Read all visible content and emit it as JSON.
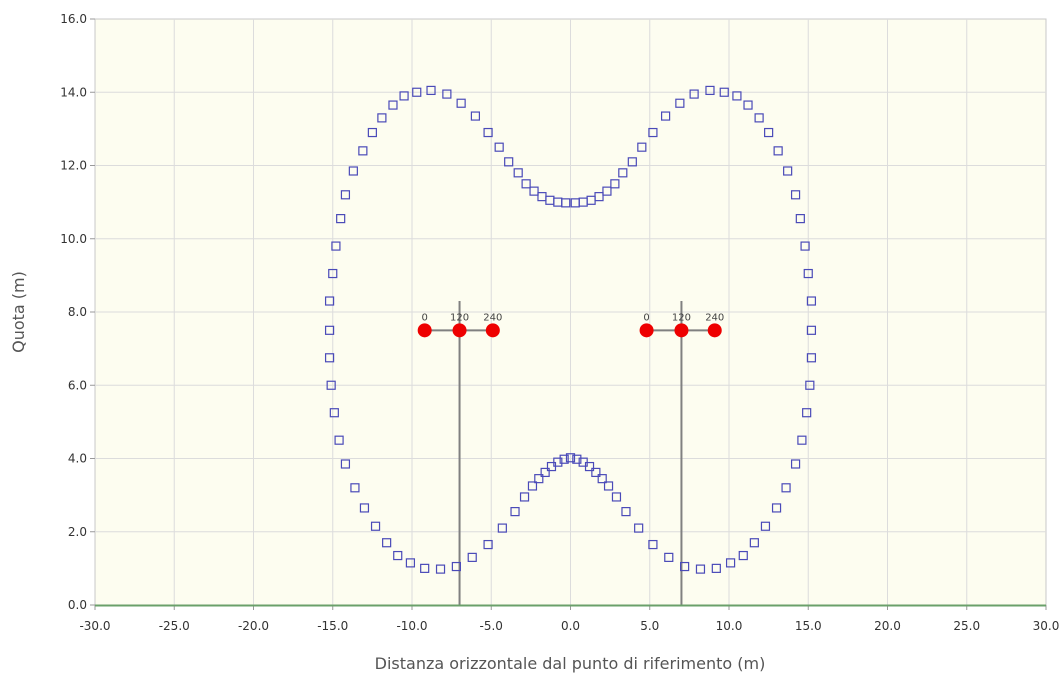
{
  "chart_data": {
    "type": "scatter",
    "title": "",
    "xlabel": "Distanza orizzontale dal punto di riferimento (m)",
    "ylabel": "Quota (m)",
    "xlim": [
      -30,
      30
    ],
    "ylim": [
      0,
      16
    ],
    "x_ticks": [
      "-30.0",
      "-25.0",
      "-20.0",
      "-15.0",
      "-10.0",
      "-5.0",
      "0.0",
      "5.0",
      "10.0",
      "15.0",
      "20.0",
      "25.0",
      "30.0"
    ],
    "y_ticks": [
      "0.0",
      "2.0",
      "4.0",
      "6.0",
      "8.0",
      "10.0",
      "12.0",
      "14.0",
      "16.0"
    ],
    "grid": true,
    "plot_background": "#fdfdf0",
    "grid_color": "#dcdcdc",
    "ground_color": "#6aa06a",
    "marker_color": "#4a4ab8",
    "conductor_color": "#ee0000",
    "pole_color": "#808080",
    "series": [
      {
        "marker": "open-square",
        "points": [
          [
            -15.2,
            7.5
          ],
          [
            -15.2,
            8.3
          ],
          [
            -15.0,
            9.05
          ],
          [
            -14.8,
            9.8
          ],
          [
            -14.5,
            10.55
          ],
          [
            -14.2,
            11.2
          ],
          [
            -13.7,
            11.85
          ],
          [
            -13.1,
            12.4
          ],
          [
            -12.5,
            12.9
          ],
          [
            -11.9,
            13.3
          ],
          [
            -11.2,
            13.65
          ],
          [
            -10.5,
            13.9
          ],
          [
            -9.7,
            14.0
          ],
          [
            -8.8,
            14.05
          ],
          [
            -7.8,
            13.95
          ],
          [
            -6.9,
            13.7
          ],
          [
            -6.0,
            13.35
          ],
          [
            -5.2,
            12.9
          ],
          [
            -4.5,
            12.5
          ],
          [
            -3.9,
            12.1
          ],
          [
            -3.3,
            11.8
          ],
          [
            -2.8,
            11.5
          ],
          [
            -2.3,
            11.3
          ],
          [
            -1.8,
            11.15
          ],
          [
            -1.3,
            11.05
          ],
          [
            -0.8,
            11.0
          ],
          [
            -0.3,
            10.98
          ],
          [
            0.3,
            10.98
          ],
          [
            0.8,
            11.0
          ],
          [
            1.3,
            11.05
          ],
          [
            1.8,
            11.15
          ],
          [
            2.3,
            11.3
          ],
          [
            2.8,
            11.5
          ],
          [
            3.3,
            11.8
          ],
          [
            3.9,
            12.1
          ],
          [
            4.5,
            12.5
          ],
          [
            5.2,
            12.9
          ],
          [
            6.0,
            13.35
          ],
          [
            6.9,
            13.7
          ],
          [
            7.8,
            13.95
          ],
          [
            8.8,
            14.05
          ],
          [
            9.7,
            14.0
          ],
          [
            10.5,
            13.9
          ],
          [
            11.2,
            13.65
          ],
          [
            11.9,
            13.3
          ],
          [
            12.5,
            12.9
          ],
          [
            13.1,
            12.4
          ],
          [
            13.7,
            11.85
          ],
          [
            14.2,
            11.2
          ],
          [
            14.5,
            10.55
          ],
          [
            14.8,
            9.8
          ],
          [
            15.0,
            9.05
          ],
          [
            15.2,
            8.3
          ],
          [
            15.2,
            7.5
          ],
          [
            -15.2,
            6.75
          ],
          [
            -15.1,
            6.0
          ],
          [
            -14.9,
            5.25
          ],
          [
            -14.6,
            4.5
          ],
          [
            -14.2,
            3.85
          ],
          [
            -13.6,
            3.2
          ],
          [
            -13.0,
            2.65
          ],
          [
            -12.3,
            2.15
          ],
          [
            -11.6,
            1.7
          ],
          [
            -10.9,
            1.35
          ],
          [
            -10.1,
            1.15
          ],
          [
            -9.2,
            1.0
          ],
          [
            -8.2,
            0.98
          ],
          [
            -7.2,
            1.05
          ],
          [
            -6.2,
            1.3
          ],
          [
            -5.2,
            1.65
          ],
          [
            -4.3,
            2.1
          ],
          [
            -3.5,
            2.55
          ],
          [
            -2.9,
            2.95
          ],
          [
            -2.4,
            3.25
          ],
          [
            -2.0,
            3.45
          ],
          [
            -1.6,
            3.62
          ],
          [
            -1.2,
            3.78
          ],
          [
            -0.8,
            3.9
          ],
          [
            -0.4,
            3.98
          ],
          [
            0.0,
            4.02
          ],
          [
            0.4,
            3.98
          ],
          [
            0.8,
            3.9
          ],
          [
            1.2,
            3.78
          ],
          [
            1.6,
            3.62
          ],
          [
            2.0,
            3.45
          ],
          [
            2.4,
            3.25
          ],
          [
            2.9,
            2.95
          ],
          [
            3.5,
            2.55
          ],
          [
            4.3,
            2.1
          ],
          [
            5.2,
            1.65
          ],
          [
            6.2,
            1.3
          ],
          [
            7.2,
            1.05
          ],
          [
            8.2,
            0.98
          ],
          [
            9.2,
            1.0
          ],
          [
            10.1,
            1.15
          ],
          [
            10.9,
            1.35
          ],
          [
            11.6,
            1.7
          ],
          [
            12.3,
            2.15
          ],
          [
            13.0,
            2.65
          ],
          [
            13.6,
            3.2
          ],
          [
            14.2,
            3.85
          ],
          [
            14.6,
            4.5
          ],
          [
            14.9,
            5.25
          ],
          [
            15.1,
            6.0
          ],
          [
            15.2,
            6.75
          ]
        ]
      }
    ],
    "supports": [
      {
        "pole_x": -7.0,
        "pole_top": 8.3,
        "crossarm_y": 7.5,
        "conductors": [
          {
            "x": -9.2,
            "y": 7.5,
            "label": "0"
          },
          {
            "x": -7.0,
            "y": 7.5,
            "label": "120"
          },
          {
            "x": -4.9,
            "y": 7.5,
            "label": "240"
          }
        ]
      },
      {
        "pole_x": 7.0,
        "pole_top": 8.3,
        "crossarm_y": 7.5,
        "conductors": [
          {
            "x": 4.8,
            "y": 7.5,
            "label": "0"
          },
          {
            "x": 7.0,
            "y": 7.5,
            "label": "120"
          },
          {
            "x": 9.1,
            "y": 7.5,
            "label": "240"
          }
        ]
      }
    ]
  }
}
